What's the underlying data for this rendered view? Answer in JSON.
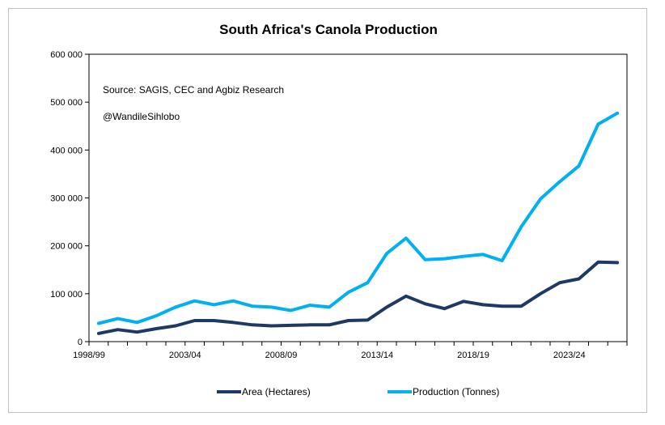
{
  "chart_data": {
    "type": "line",
    "title": "South Africa's Canola Production",
    "annotations": [
      "Source: SAGIS, CEC and Agbiz Research",
      "@WandileSihlobo"
    ],
    "x_tick_labels": [
      "1998/99",
      "2003/04",
      "2008/09",
      "2013/14",
      "2018/19",
      "2023/24"
    ],
    "y_tick_labels": [
      "0",
      "100 000",
      "200 000",
      "300 000",
      "400 000",
      "500 000",
      "600 000"
    ],
    "ylim": [
      0,
      600000
    ],
    "xlabel": "",
    "ylabel": "",
    "grid": false,
    "legend_position": "bottom",
    "x": [
      "1998/99",
      "1999/00",
      "2000/01",
      "2001/02",
      "2002/03",
      "2003/04",
      "2004/05",
      "2005/06",
      "2006/07",
      "2007/08",
      "2008/09",
      "2009/10",
      "2010/11",
      "2011/12",
      "2012/13",
      "2013/14",
      "2014/15",
      "2015/16",
      "2016/17",
      "2017/18",
      "2018/19",
      "2019/20",
      "2020/21",
      "2021/22",
      "2022/23",
      "2023/24",
      "2024/25",
      "2025/26"
    ],
    "series": [
      {
        "name": "Area (Hectares)",
        "color": "#1f3864",
        "values": [
          17000,
          25000,
          20000,
          27000,
          33000,
          44000,
          44000,
          40000,
          35000,
          33000,
          34000,
          35000,
          35000,
          44000,
          45000,
          72000,
          95000,
          79000,
          69000,
          84000,
          77000,
          74000,
          74000,
          100000,
          123000,
          131000,
          166000,
          165000
        ]
      },
      {
        "name": "Production (Tonnes)",
        "color": "#00b0f0",
        "values": [
          38000,
          48000,
          40000,
          54000,
          72000,
          85000,
          77000,
          85000,
          74000,
          72000,
          65000,
          76000,
          72000,
          103000,
          123000,
          184000,
          216000,
          171000,
          173000,
          178000,
          182000,
          169000,
          240000,
          298000,
          334000,
          367000,
          454000,
          477000
        ]
      }
    ]
  }
}
